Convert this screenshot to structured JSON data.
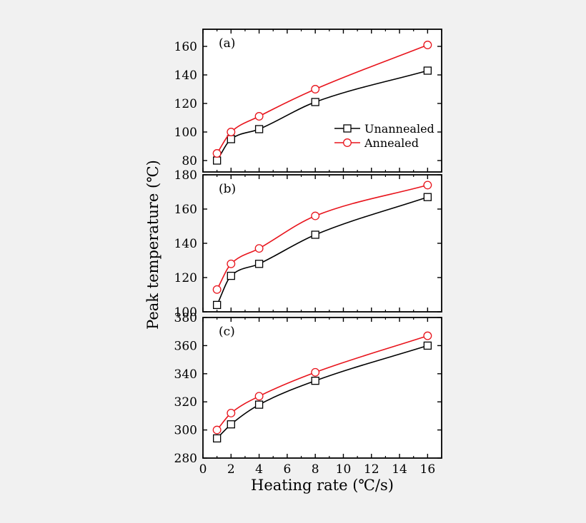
{
  "chart_data": {
    "type": "line",
    "xlabel": "Heating rate (℃/s)",
    "ylabel": "Peak temperature (℃)",
    "xlim": [
      0,
      17
    ],
    "x_ticks": [
      0,
      2,
      4,
      6,
      8,
      10,
      12,
      14,
      16
    ],
    "legend": {
      "placement": "lower-right of panel (a)",
      "entries": [
        "Unannealed",
        "Annealed"
      ]
    },
    "colors": {
      "Unannealed": "#000000",
      "Annealed": "#e8141c"
    },
    "panels": [
      {
        "label": "(a)",
        "ylim": [
          72,
          172
        ],
        "y_ticks": [
          80,
          100,
          120,
          140,
          160
        ],
        "x": [
          1,
          2,
          4,
          8,
          16
        ],
        "series": [
          {
            "name": "Unannealed",
            "marker": "square",
            "values": [
              80,
              95,
              102,
              121,
              143
            ]
          },
          {
            "name": "Annealed",
            "marker": "circle",
            "values": [
              85,
              100,
              111,
              130,
              161
            ]
          }
        ]
      },
      {
        "label": "(b)",
        "ylim": [
          100,
          180
        ],
        "y_ticks": [
          100,
          120,
          140,
          160,
          180
        ],
        "x": [
          1,
          2,
          4,
          8,
          16
        ],
        "series": [
          {
            "name": "Unannealed",
            "marker": "square",
            "values": [
              104,
              121,
              128,
              145,
              167
            ]
          },
          {
            "name": "Annealed",
            "marker": "circle",
            "values": [
              113,
              128,
              137,
              156,
              174
            ]
          }
        ]
      },
      {
        "label": "(c)",
        "ylim": [
          280,
          380
        ],
        "y_ticks": [
          280,
          300,
          320,
          340,
          360,
          380
        ],
        "x": [
          1,
          2,
          4,
          8,
          16
        ],
        "series": [
          {
            "name": "Unannealed",
            "marker": "square",
            "values": [
              294,
              304,
              318,
              335,
              360
            ]
          },
          {
            "name": "Annealed",
            "marker": "circle",
            "values": [
              300,
              312,
              324,
              341,
              367
            ]
          }
        ]
      }
    ]
  }
}
